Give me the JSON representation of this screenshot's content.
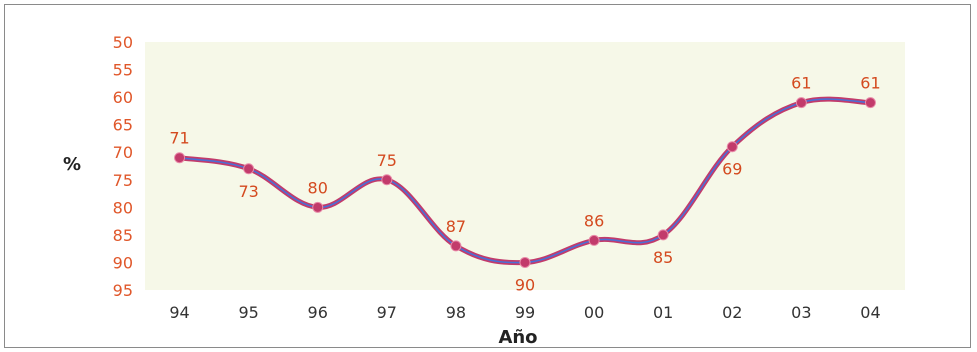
{
  "chart_data": {
    "type": "line",
    "categories": [
      "94",
      "95",
      "96",
      "97",
      "98",
      "99",
      "00",
      "01",
      "02",
      "03",
      "04"
    ],
    "series": [
      {
        "values": [
          71,
          73,
          80,
          75,
          87,
          90,
          86,
          85,
          69,
          61,
          61
        ]
      }
    ],
    "data_labels": [
      "71",
      "73",
      "80",
      "75",
      "87",
      "90",
      "86",
      "85",
      "69",
      "61",
      "61"
    ],
    "xlabel": "Año",
    "ylabel": "%",
    "ylim": [
      50,
      95
    ],
    "y_inverted": true,
    "yticks": [
      "50",
      "55",
      "60",
      "65",
      "70",
      "75",
      "80",
      "85",
      "90",
      "95"
    ],
    "grid": false,
    "colors": {
      "line": "#c23b6b",
      "line_inner": "#4a6fd6",
      "plot_bg": "#f6f8e8",
      "tick_text": "#e0572a",
      "data_label": "#d44a1f"
    }
  }
}
